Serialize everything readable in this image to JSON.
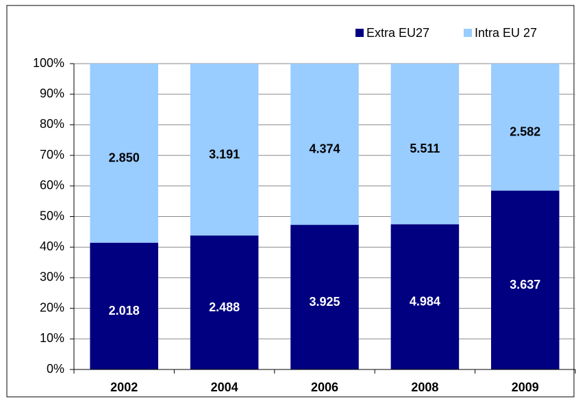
{
  "chart_data": {
    "type": "bar",
    "stacking": "percent",
    "categories": [
      "2002",
      "2004",
      "2006",
      "2008",
      "2009"
    ],
    "series": [
      {
        "name": "Extra EU27",
        "color": "#000080",
        "label_color": "#ffffff",
        "values": [
          2.018,
          2.488,
          3.925,
          4.984,
          3.637
        ]
      },
      {
        "name": "Intra EU 27",
        "color": "#99ccff",
        "label_color": "#000000",
        "values": [
          2.85,
          3.191,
          4.374,
          5.511,
          2.582
        ],
        "value_labels": [
          "2.850",
          "3.191",
          "4.374",
          "5.511",
          "2.582"
        ]
      }
    ],
    "ylim": [
      0,
      100
    ],
    "yticks": [
      {
        "value": 0,
        "label": "0%"
      },
      {
        "value": 10,
        "label": "10%"
      },
      {
        "value": 20,
        "label": "20%"
      },
      {
        "value": 30,
        "label": "30%"
      },
      {
        "value": 40,
        "label": "40%"
      },
      {
        "value": 50,
        "label": "50%"
      },
      {
        "value": 60,
        "label": "60%"
      },
      {
        "value": 70,
        "label": "70%"
      },
      {
        "value": 80,
        "label": "80%"
      },
      {
        "value": 90,
        "label": "90%"
      },
      {
        "value": 100,
        "label": "100%"
      }
    ],
    "grid": true,
    "legend": "top-right"
  }
}
